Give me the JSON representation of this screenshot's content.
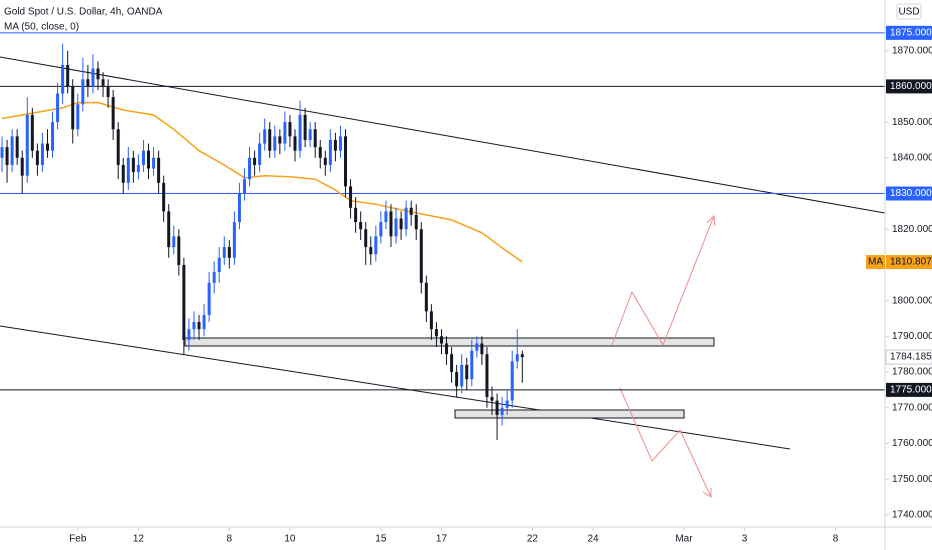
{
  "legend": {
    "title": "Gold Spot / U.S. Dollar, 4h, OANDA",
    "indicator": "MA (50, close, 0)"
  },
  "currency": "USD",
  "chart_data": {
    "type": "candlestick",
    "up_color": "#2962ff",
    "down_color": "#131722",
    "xlim": [
      -15.4,
      159.8
    ],
    "xticks": [
      {
        "value": 0,
        "label": "Feb"
      },
      12,
      {
        "value": 30,
        "label": "8"
      },
      {
        "value": 42,
        "label": "10"
      },
      {
        "value": 60,
        "label": "15"
      },
      {
        "value": 72,
        "label": "17"
      },
      {
        "value": 90,
        "label": "22"
      },
      {
        "value": 102,
        "label": "24"
      },
      {
        "value": 120,
        "label": "Mar"
      },
      {
        "value": 132,
        "label": "3"
      },
      {
        "value": 150,
        "label": "8"
      }
    ],
    "ylim": [
      1736.6,
      1884.2
    ],
    "yticks": [
      {
        "value": 1740,
        "label": "1740.000"
      },
      {
        "value": 1750,
        "label": "1750.000"
      },
      {
        "value": 1760,
        "label": "1760.000"
      },
      {
        "value": 1770,
        "label": "1770.000"
      },
      {
        "value": 1780,
        "label": "1780.000"
      },
      {
        "value": 1790,
        "label": "1790.000"
      },
      {
        "value": 1800,
        "label": "1800.000"
      },
      {
        "value": 1810,
        "label": "1810.000"
      },
      {
        "value": 1820,
        "label": "1820.000"
      },
      {
        "value": 1830,
        "label": "1830.000"
      },
      {
        "value": 1840,
        "label": "1840.000"
      },
      {
        "value": 1850,
        "label": "1850.000"
      },
      {
        "value": 1860,
        "label": "1860.000"
      },
      {
        "value": 1870,
        "label": "1870.000"
      }
    ],
    "x": [
      -15,
      -14,
      -13,
      -12,
      -11,
      -10,
      -9,
      -8,
      -7,
      -6,
      -5,
      -4,
      -3,
      -2,
      -1,
      0,
      1,
      2,
      3,
      4,
      5,
      6,
      7,
      8,
      9,
      10,
      11,
      12,
      13,
      14,
      15,
      16,
      17,
      18,
      19,
      20,
      21,
      22,
      23,
      24,
      25,
      26,
      27,
      28,
      29,
      30,
      31,
      32,
      33,
      34,
      35,
      36,
      37,
      38,
      39,
      40,
      41,
      42,
      43,
      44,
      45,
      46,
      47,
      48,
      49,
      50,
      51,
      52,
      53,
      54,
      55,
      56,
      57,
      58,
      59,
      60,
      61,
      62,
      63,
      64,
      65,
      66,
      67,
      68,
      69,
      70,
      71,
      72,
      73,
      74,
      75,
      76,
      77,
      78,
      79,
      80,
      81,
      82,
      83,
      84,
      85,
      86,
      87,
      88
    ],
    "ohlc": [
      [
        1840,
        1846,
        1836,
        1843
      ],
      [
        1843,
        1845,
        1833,
        1838
      ],
      [
        1838,
        1848,
        1836,
        1846
      ],
      [
        1846,
        1848,
        1838,
        1840
      ],
      [
        1840,
        1842,
        1830,
        1835
      ],
      [
        1835,
        1857,
        1833,
        1852
      ],
      [
        1852,
        1854,
        1840,
        1842
      ],
      [
        1842,
        1844,
        1835,
        1838
      ],
      [
        1838,
        1847,
        1836,
        1844
      ],
      [
        1844,
        1848,
        1840,
        1842
      ],
      [
        1842,
        1853,
        1840,
        1850
      ],
      [
        1850,
        1861,
        1848,
        1858
      ],
      [
        1858,
        1872,
        1855,
        1866
      ],
      [
        1866,
        1870,
        1858,
        1860
      ],
      [
        1860,
        1862,
        1844,
        1848
      ],
      [
        1848,
        1858,
        1846,
        1855
      ],
      [
        1855,
        1868,
        1853,
        1862
      ],
      [
        1862,
        1866,
        1857,
        1860
      ],
      [
        1860,
        1869,
        1858,
        1865
      ],
      [
        1865,
        1867,
        1859,
        1862
      ],
      [
        1862,
        1864,
        1857,
        1860
      ],
      [
        1860,
        1862,
        1854,
        1857
      ],
      [
        1857,
        1859,
        1845,
        1848
      ],
      [
        1848,
        1850,
        1834,
        1838
      ],
      [
        1838,
        1840,
        1830,
        1833
      ],
      [
        1833,
        1843,
        1831,
        1840
      ],
      [
        1840,
        1842,
        1833,
        1836
      ],
      [
        1836,
        1841,
        1834,
        1838
      ],
      [
        1838,
        1845,
        1836,
        1842
      ],
      [
        1842,
        1844,
        1834,
        1837
      ],
      [
        1837,
        1843,
        1835,
        1840
      ],
      [
        1840,
        1842,
        1830,
        1833
      ],
      [
        1833,
        1835,
        1822,
        1825
      ],
      [
        1825,
        1827,
        1812,
        1815
      ],
      [
        1815,
        1821,
        1813,
        1818
      ],
      [
        1818,
        1820,
        1807,
        1810
      ],
      [
        1810,
        1812,
        1785,
        1789
      ],
      [
        1789,
        1795,
        1786,
        1792
      ],
      [
        1792,
        1797,
        1789,
        1794
      ],
      [
        1794,
        1796,
        1789,
        1792
      ],
      [
        1792,
        1799,
        1790,
        1796
      ],
      [
        1796,
        1808,
        1794,
        1805
      ],
      [
        1805,
        1811,
        1802,
        1808
      ],
      [
        1808,
        1815,
        1805,
        1812
      ],
      [
        1812,
        1818,
        1810,
        1815
      ],
      [
        1815,
        1817,
        1809,
        1812
      ],
      [
        1812,
        1825,
        1810,
        1822
      ],
      [
        1822,
        1833,
        1820,
        1830
      ],
      [
        1830,
        1837,
        1828,
        1834
      ],
      [
        1834,
        1843,
        1832,
        1840
      ],
      [
        1840,
        1842,
        1835,
        1838
      ],
      [
        1838,
        1847,
        1836,
        1844
      ],
      [
        1844,
        1851,
        1842,
        1848
      ],
      [
        1848,
        1850,
        1840,
        1842
      ],
      [
        1842,
        1849,
        1840,
        1846
      ],
      [
        1846,
        1848,
        1841,
        1844
      ],
      [
        1844,
        1853,
        1842,
        1850
      ],
      [
        1850,
        1852,
        1843,
        1846
      ],
      [
        1846,
        1848,
        1839,
        1842
      ],
      [
        1842,
        1856,
        1840,
        1852
      ],
      [
        1852,
        1854,
        1843,
        1845
      ],
      [
        1845,
        1850,
        1843,
        1848
      ],
      [
        1848,
        1850,
        1840,
        1843
      ],
      [
        1843,
        1845,
        1837,
        1840
      ],
      [
        1840,
        1842,
        1835,
        1838
      ],
      [
        1838,
        1848,
        1836,
        1845
      ],
      [
        1845,
        1847,
        1839,
        1842
      ],
      [
        1842,
        1849,
        1840,
        1846
      ],
      [
        1846,
        1848,
        1829,
        1832
      ],
      [
        1832,
        1834,
        1823,
        1826
      ],
      [
        1826,
        1829,
        1819,
        1822
      ],
      [
        1822,
        1825,
        1817,
        1820
      ],
      [
        1820,
        1822,
        1810,
        1815
      ],
      [
        1815,
        1818,
        1810,
        1813
      ],
      [
        1813,
        1821,
        1811,
        1818
      ],
      [
        1818,
        1825,
        1816,
        1822
      ],
      [
        1822,
        1828,
        1820,
        1825
      ],
      [
        1825,
        1827,
        1815,
        1818
      ],
      [
        1818,
        1826,
        1816,
        1823
      ],
      [
        1823,
        1825,
        1817,
        1820
      ],
      [
        1820,
        1828,
        1818,
        1826
      ],
      [
        1826,
        1828,
        1821,
        1824
      ],
      [
        1824,
        1827,
        1817,
        1820
      ],
      [
        1820,
        1822,
        1802,
        1805
      ],
      [
        1805,
        1807,
        1794,
        1797
      ],
      [
        1797,
        1799,
        1789,
        1792
      ],
      [
        1792,
        1794,
        1787,
        1790
      ],
      [
        1790,
        1792,
        1785,
        1788
      ],
      [
        1788,
        1790,
        1782,
        1785
      ],
      [
        1785,
        1787,
        1777,
        1780
      ],
      [
        1780,
        1782,
        1773,
        1776
      ],
      [
        1776,
        1785,
        1774,
        1782
      ],
      [
        1782,
        1784,
        1775,
        1778
      ],
      [
        1778,
        1789,
        1776,
        1786
      ],
      [
        1786,
        1790,
        1784,
        1788
      ],
      [
        1788,
        1790,
        1782,
        1785
      ],
      [
        1785,
        1787,
        1770,
        1773
      ],
      [
        1773,
        1776,
        1768,
        1772
      ],
      [
        1772,
        1774,
        1761,
        1768
      ],
      [
        1768,
        1773,
        1765,
        1770
      ],
      [
        1770,
        1775,
        1768,
        1772
      ],
      [
        1772,
        1786,
        1770,
        1783
      ],
      [
        1783,
        1792,
        1781,
        1785
      ],
      [
        1785,
        1786,
        1777,
        1784.185
      ]
    ],
    "last_price_label": "1784.185",
    "ma": {
      "name": "MA",
      "color": "#f7a21b",
      "x": [
        -15,
        -11,
        -7,
        -3,
        0,
        4,
        9,
        15,
        19,
        24,
        29,
        33,
        37,
        42,
        47,
        51,
        54,
        59,
        64,
        69,
        74,
        80,
        84,
        88
      ],
      "values": [
        1851,
        1852,
        1853,
        1854,
        1855.4,
        1855.5,
        1853.4,
        1852,
        1848,
        1842,
        1838,
        1834.4,
        1835,
        1834.7,
        1834,
        1831,
        1828,
        1827,
        1825.4,
        1824,
        1822.6,
        1819,
        1814.8,
        1810.807
      ],
      "last_label": "1810.807"
    },
    "levels": [
      {
        "value": 1875,
        "label": "1875.000",
        "color": "#2962ff"
      },
      {
        "value": 1860,
        "label": "1860.000",
        "color": "#131722"
      },
      {
        "value": 1830,
        "label": "1830.000",
        "color": "#2962ff"
      },
      {
        "value": 1775,
        "label": "1775.000",
        "color": "#131722"
      }
    ]
  }
}
